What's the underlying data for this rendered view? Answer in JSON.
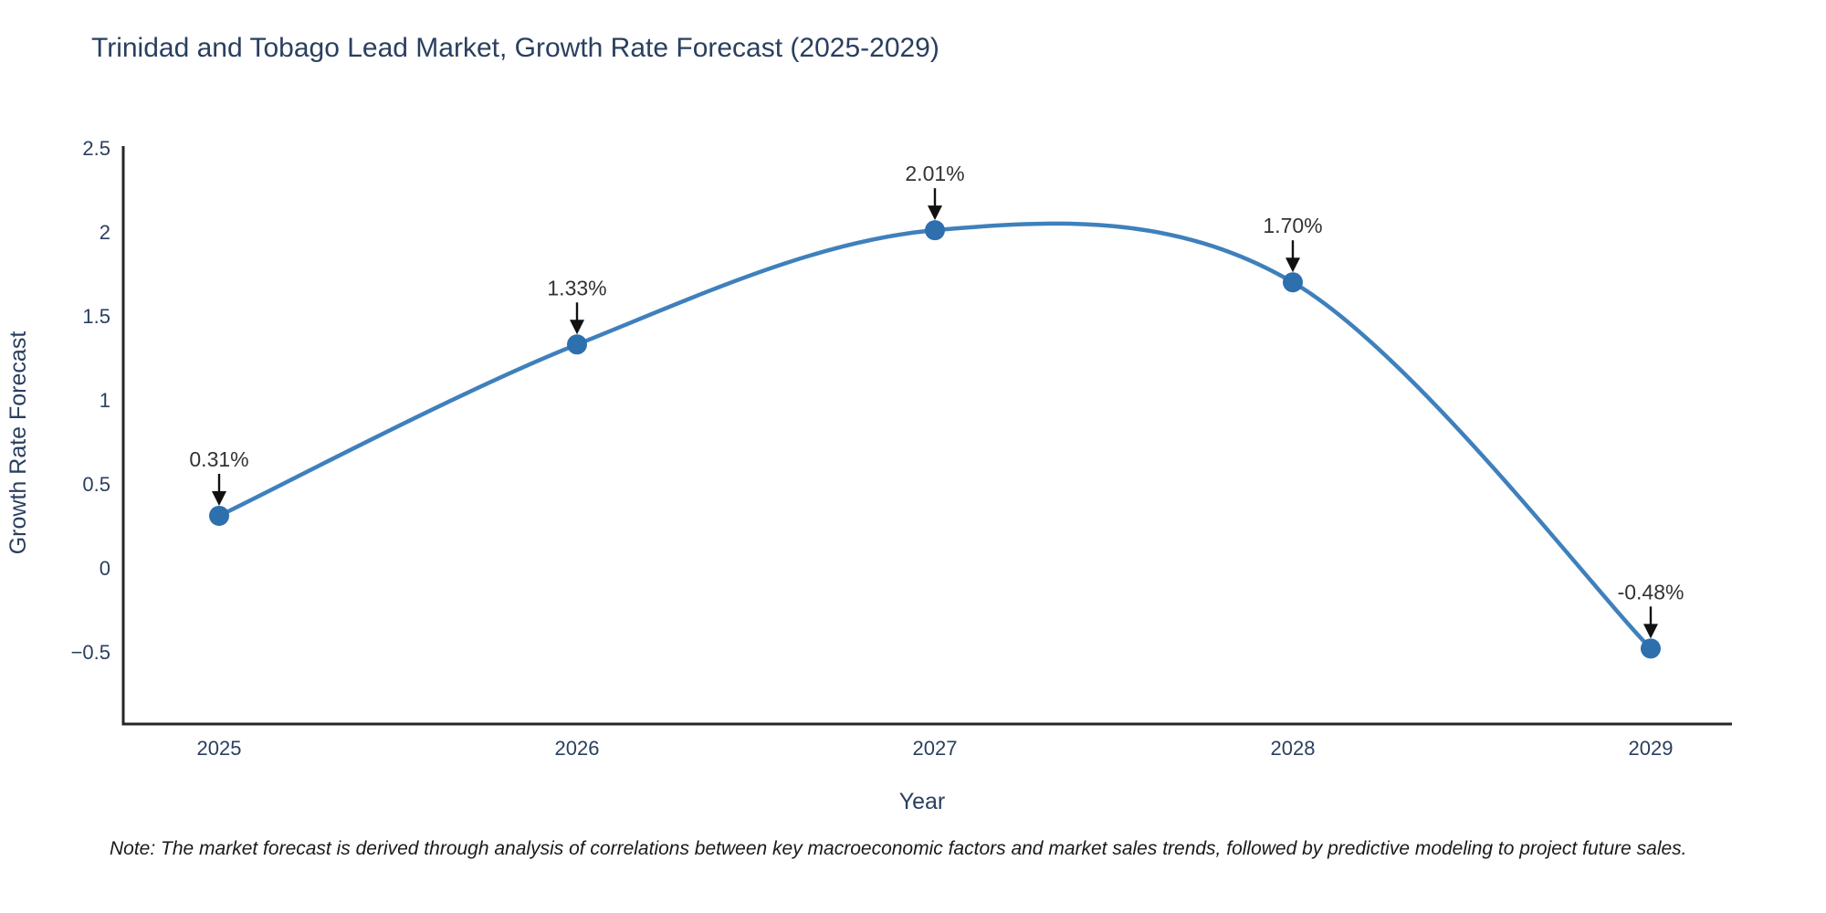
{
  "title": {
    "text": "Trinidad and Tobago Lead Market, Growth Rate Forecast (2025-2029)"
  },
  "note": {
    "text": "Note: The market forecast is derived through analysis of correlations between key macroeconomic factors and market sales trends, followed by predictive modeling to project future sales."
  },
  "chart_data": {
    "type": "line",
    "title": "Trinidad and Tobago Lead Market, Growth Rate Forecast (2025-2029)",
    "xlabel": "Year",
    "ylabel": "Growth Rate Forecast",
    "categories": [
      "2025",
      "2026",
      "2027",
      "2028",
      "2029"
    ],
    "series": [
      {
        "name": "Growth Rate Forecast",
        "values": [
          0.31,
          1.33,
          2.01,
          1.7,
          -0.48
        ]
      }
    ],
    "point_labels": [
      "0.31%",
      "1.33%",
      "2.01%",
      "1.70%",
      "-0.48%"
    ],
    "line_shape": "spline",
    "grid": false,
    "legend": "none",
    "yticks": {
      "values": [
        2.5,
        2,
        1.5,
        1,
        0.5,
        0,
        -0.5
      ],
      "labels": [
        "2.5",
        "2",
        "1.5",
        "1",
        "0.5",
        "0",
        "−0.5"
      ]
    },
    "ylim": [
      -0.93,
      2.51
    ],
    "colors": {
      "line": "#3f80bc",
      "marker": "#2e6fad",
      "axis": "#262626",
      "tick_label": "#2a3f5f",
      "annotation_text": "#333333",
      "arrow": "#111111",
      "title": "#2a3f5f"
    }
  }
}
